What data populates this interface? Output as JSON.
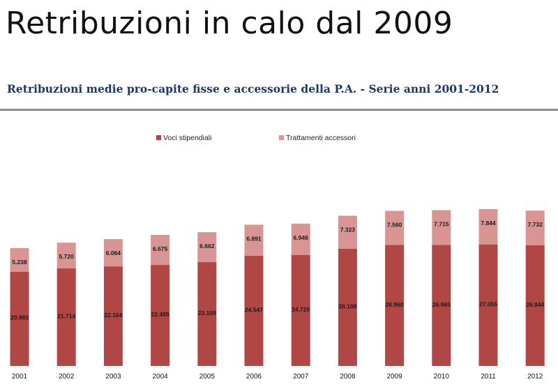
{
  "slide": {
    "title": "Retribuzioni in calo dal 2009"
  },
  "chart_data": {
    "type": "bar",
    "stacked": true,
    "title": "Retribuzioni medie pro-capite fisse e accessorie della P.A. - Serie anni 2001-2012",
    "xlabel": "",
    "ylabel": "",
    "grid": false,
    "legend_position": "top",
    "categories": [
      "2001",
      "2002",
      "2003",
      "2004",
      "2005",
      "2006",
      "2007",
      "2008",
      "2009",
      "2010",
      "2011",
      "2012"
    ],
    "series": [
      {
        "name": "Voci stipendiali",
        "color": "#b04745",
        "values": [
          20983,
          21714,
          22164,
          22485,
          23109,
          24547,
          24725,
          26108,
          26960,
          26965,
          27055,
          26844
        ],
        "labels": [
          "20.983",
          "21.714",
          "22.164",
          "22.485",
          "23.109",
          "24.547",
          "24.725",
          "26.108",
          "26.960",
          "26.965",
          "27.055",
          "26.844"
        ]
      },
      {
        "name": "Trattamenti accessori",
        "color": "#d99594",
        "values": [
          5238,
          5720,
          6064,
          6675,
          6662,
          6891,
          6946,
          7323,
          7560,
          7715,
          7844,
          7732
        ],
        "labels": [
          "5.238",
          "5.720",
          "6.064",
          "6.675",
          "6.662",
          "6.891",
          "6.946",
          "7.323",
          "7.560",
          "7.715",
          "7.844",
          "7.732"
        ]
      }
    ]
  }
}
